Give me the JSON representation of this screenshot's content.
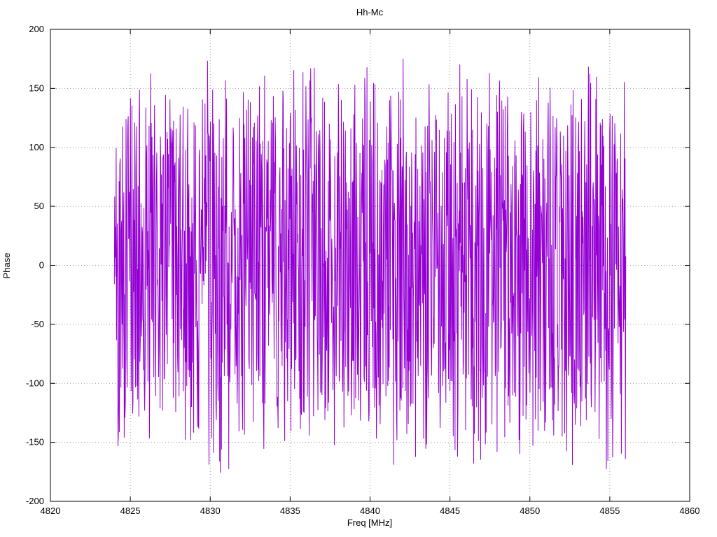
{
  "chart_data": {
    "type": "line",
    "title": "Hh-Mc",
    "xlabel": "Freq [MHz]",
    "ylabel": "Phase",
    "xlim": [
      4820,
      4860
    ],
    "ylim": [
      -200,
      200
    ],
    "xticks": [
      4820,
      4825,
      4830,
      4835,
      4840,
      4845,
      4850,
      4855,
      4860
    ],
    "yticks": [
      -200,
      -150,
      -100,
      -50,
      0,
      50,
      100,
      150,
      200
    ],
    "grid": true,
    "grid_style": "dotted",
    "legend_position": "none",
    "background": "#ffffff",
    "series": [
      {
        "name": "phase",
        "color": "#9400d3",
        "x_start": 4824.0,
        "x_end": 4856.0,
        "n_points": 1400,
        "y_min": -182,
        "y_max": 182,
        "seed": 42,
        "description": "Wrapped phase vs frequency; dense noise-like trace spanning approximately -180 to +180 degrees between 4824 and 4856 MHz, drawn as connected line segments (gnuplot-style)."
      }
    ]
  }
}
